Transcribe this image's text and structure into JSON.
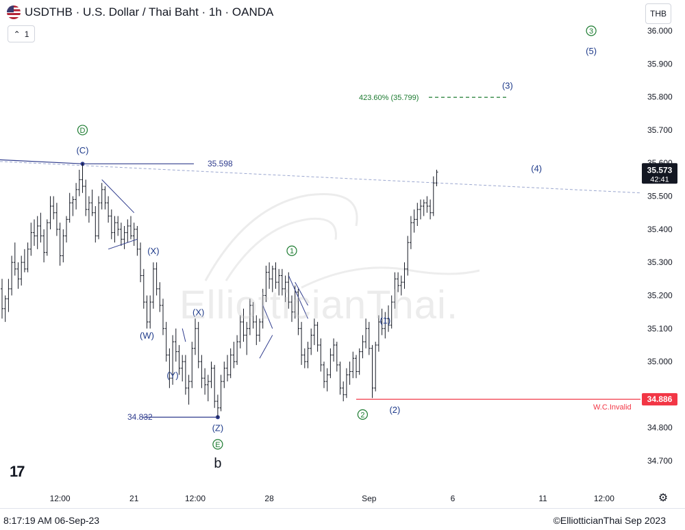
{
  "header": {
    "title": "USDTHB · U.S. Dollar / Thai Baht · 1h · OANDA",
    "interval_count": "1",
    "currency": "THB"
  },
  "watermark": "ElliotticianThai.",
  "footer": {
    "timestamp": "8:17:19 AM 06-Sep-23",
    "copyright": "©ElliotticianThai Sep 2023"
  },
  "tv_logo": "17",
  "chart_data": {
    "type": "candlestick",
    "symbol": "USDTHB",
    "ylim": [
      34.68,
      36.04
    ],
    "y_ticks": [
      {
        "value": 36.0,
        "label": "36.000"
      },
      {
        "value": 35.9,
        "label": "35.900"
      },
      {
        "value": 35.8,
        "label": "35.800"
      },
      {
        "value": 35.7,
        "label": "35.700"
      },
      {
        "value": 35.6,
        "label": "35.600"
      },
      {
        "value": 35.5,
        "label": "35.500"
      },
      {
        "value": 35.4,
        "label": "35.400"
      },
      {
        "value": 35.3,
        "label": "35.300"
      },
      {
        "value": 35.2,
        "label": "35.200"
      },
      {
        "value": 35.1,
        "label": "35.100"
      },
      {
        "value": 35.0,
        "label": "35.000"
      },
      {
        "value": 34.8,
        "label": "34.800"
      },
      {
        "value": 34.7,
        "label": "34.700"
      }
    ],
    "x_ticks": [
      {
        "label": "12:00",
        "bar": 18
      },
      {
        "label": "21",
        "bar": 41
      },
      {
        "label": "12:00",
        "bar": 60
      },
      {
        "label": "28",
        "bar": 83
      },
      {
        "label": "Sep",
        "bar": 114
      },
      {
        "label": "6",
        "bar": 140
      },
      {
        "label": "11",
        "bar": 168
      },
      {
        "label": "12:00",
        "bar": 187
      }
    ],
    "price_badge": {
      "value": 35.573,
      "label": "35.573",
      "countdown": "42:41",
      "color": "#131722"
    },
    "invalid_badge": {
      "value": 34.886,
      "label": "34.886",
      "color": "#f23645"
    },
    "invalid_label": "W.C.Invalid",
    "levels": [
      {
        "value": 35.598,
        "label": "35.598"
      },
      {
        "value": 34.832,
        "label": "34.832"
      }
    ],
    "fib": {
      "value": 35.799,
      "label": "423.60% (35.799)"
    },
    "wave_labels": [
      {
        "text": "D",
        "circled": true,
        "bar": 25,
        "price": 35.7,
        "color": "#1b7a2f"
      },
      {
        "text": "(C)",
        "bar": 25,
        "price": 35.64,
        "color": "#1e3a8a"
      },
      {
        "text": "(X)",
        "bar": 47,
        "price": 35.335,
        "color": "#1e3a8a"
      },
      {
        "text": "(W)",
        "bar": 45,
        "price": 35.08,
        "color": "#1e3a8a"
      },
      {
        "text": "(X)",
        "bar": 61,
        "price": 35.15,
        "color": "#1e3a8a"
      },
      {
        "text": "(Y)",
        "bar": 53,
        "price": 34.96,
        "color": "#1e3a8a"
      },
      {
        "text": "(Z)",
        "bar": 67,
        "price": 34.8,
        "color": "#1e3a8a"
      },
      {
        "text": "E",
        "circled": true,
        "bar": 67,
        "price": 34.75,
        "color": "#1b7a2f"
      },
      {
        "text": "b",
        "bar": 67,
        "price": 34.69,
        "color": "#131722",
        "big": true
      },
      {
        "text": "1",
        "circled": true,
        "bar": 90,
        "price": 35.335,
        "color": "#1b7a2f"
      },
      {
        "text": "(1)",
        "bar": 119,
        "price": 35.125,
        "color": "#1e3a8a"
      },
      {
        "text": "2",
        "circled": true,
        "bar": 112,
        "price": 34.84,
        "color": "#1b7a2f"
      },
      {
        "text": "(2)",
        "bar": 122,
        "price": 34.855,
        "color": "#1e3a8a"
      },
      {
        "text": "(3)",
        "bar": 157,
        "price": 35.835,
        "color": "#1e3a8a"
      },
      {
        "text": "(4)",
        "bar": 166,
        "price": 35.585,
        "color": "#1e3a8a"
      },
      {
        "text": "3",
        "circled": true,
        "bar": 183,
        "price": 36.0,
        "color": "#1b7a2f"
      },
      {
        "text": "(5)",
        "bar": 183,
        "price": 35.94,
        "color": "#1e3a8a"
      }
    ],
    "bars": [
      {
        "o": 35.22,
        "h": 35.25,
        "l": 35.13,
        "c": 35.16
      },
      {
        "o": 35.16,
        "h": 35.2,
        "l": 35.12,
        "c": 35.19
      },
      {
        "o": 35.19,
        "h": 35.25,
        "l": 35.15,
        "c": 35.22
      },
      {
        "o": 35.22,
        "h": 35.32,
        "l": 35.2,
        "c": 35.3
      },
      {
        "o": 35.3,
        "h": 35.36,
        "l": 35.26,
        "c": 35.28
      },
      {
        "o": 35.28,
        "h": 35.3,
        "l": 35.22,
        "c": 35.25
      },
      {
        "o": 35.25,
        "h": 35.32,
        "l": 35.23,
        "c": 35.3
      },
      {
        "o": 35.3,
        "h": 35.34,
        "l": 35.27,
        "c": 35.28
      },
      {
        "o": 35.28,
        "h": 35.36,
        "l": 35.27,
        "c": 35.34
      },
      {
        "o": 35.34,
        "h": 35.42,
        "l": 35.32,
        "c": 35.39
      },
      {
        "o": 35.39,
        "h": 35.43,
        "l": 35.35,
        "c": 35.38
      },
      {
        "o": 35.38,
        "h": 35.44,
        "l": 35.34,
        "c": 35.41
      },
      {
        "o": 35.41,
        "h": 35.45,
        "l": 35.36,
        "c": 35.38
      },
      {
        "o": 35.38,
        "h": 35.4,
        "l": 35.3,
        "c": 35.33
      },
      {
        "o": 35.33,
        "h": 35.43,
        "l": 35.32,
        "c": 35.42
      },
      {
        "o": 35.42,
        "h": 35.5,
        "l": 35.4,
        "c": 35.47
      },
      {
        "o": 35.47,
        "h": 35.5,
        "l": 35.43,
        "c": 35.45
      },
      {
        "o": 35.45,
        "h": 35.48,
        "l": 35.38,
        "c": 35.4
      },
      {
        "o": 35.4,
        "h": 35.42,
        "l": 35.29,
        "c": 35.32
      },
      {
        "o": 35.32,
        "h": 35.4,
        "l": 35.3,
        "c": 35.38
      },
      {
        "o": 35.38,
        "h": 35.44,
        "l": 35.36,
        "c": 35.43
      },
      {
        "o": 35.43,
        "h": 35.51,
        "l": 35.42,
        "c": 35.48
      },
      {
        "o": 35.48,
        "h": 35.5,
        "l": 35.44,
        "c": 35.49
      },
      {
        "o": 35.49,
        "h": 35.54,
        "l": 35.46,
        "c": 35.52
      },
      {
        "o": 35.52,
        "h": 35.58,
        "l": 35.5,
        "c": 35.55
      },
      {
        "o": 35.55,
        "h": 35.6,
        "l": 35.51,
        "c": 35.53
      },
      {
        "o": 35.53,
        "h": 35.55,
        "l": 35.44,
        "c": 35.46
      },
      {
        "o": 35.46,
        "h": 35.5,
        "l": 35.42,
        "c": 35.48
      },
      {
        "o": 35.48,
        "h": 35.52,
        "l": 35.44,
        "c": 35.45
      },
      {
        "o": 35.45,
        "h": 35.47,
        "l": 35.36,
        "c": 35.38
      },
      {
        "o": 35.38,
        "h": 35.5,
        "l": 35.37,
        "c": 35.48
      },
      {
        "o": 35.48,
        "h": 35.54,
        "l": 35.46,
        "c": 35.52
      },
      {
        "o": 35.52,
        "h": 35.53,
        "l": 35.46,
        "c": 35.48
      },
      {
        "o": 35.48,
        "h": 35.5,
        "l": 35.42,
        "c": 35.44
      },
      {
        "o": 35.44,
        "h": 35.46,
        "l": 35.37,
        "c": 35.39
      },
      {
        "o": 35.39,
        "h": 35.44,
        "l": 35.36,
        "c": 35.42
      },
      {
        "o": 35.42,
        "h": 35.44,
        "l": 35.38,
        "c": 35.4
      },
      {
        "o": 35.4,
        "h": 35.42,
        "l": 35.35,
        "c": 35.37
      },
      {
        "o": 35.37,
        "h": 35.41,
        "l": 35.34,
        "c": 35.39
      },
      {
        "o": 35.39,
        "h": 35.43,
        "l": 35.36,
        "c": 35.41
      },
      {
        "o": 35.41,
        "h": 35.44,
        "l": 35.37,
        "c": 35.38
      },
      {
        "o": 35.38,
        "h": 35.42,
        "l": 35.35,
        "c": 35.4
      },
      {
        "o": 35.4,
        "h": 35.41,
        "l": 35.32,
        "c": 35.34
      },
      {
        "o": 35.34,
        "h": 35.36,
        "l": 35.24,
        "c": 35.26
      },
      {
        "o": 35.26,
        "h": 35.28,
        "l": 35.16,
        "c": 35.18
      },
      {
        "o": 35.18,
        "h": 35.2,
        "l": 35.1,
        "c": 35.12
      },
      {
        "o": 35.12,
        "h": 35.2,
        "l": 35.1,
        "c": 35.18
      },
      {
        "o": 35.18,
        "h": 35.3,
        "l": 35.16,
        "c": 35.28
      },
      {
        "o": 35.28,
        "h": 35.3,
        "l": 35.2,
        "c": 35.22
      },
      {
        "o": 35.22,
        "h": 35.24,
        "l": 35.15,
        "c": 35.17
      },
      {
        "o": 35.17,
        "h": 35.19,
        "l": 35.08,
        "c": 35.1
      },
      {
        "o": 35.1,
        "h": 35.12,
        "l": 35.0,
        "c": 35.02
      },
      {
        "o": 35.02,
        "h": 35.04,
        "l": 34.92,
        "c": 34.95
      },
      {
        "o": 34.95,
        "h": 35.08,
        "l": 34.93,
        "c": 35.06
      },
      {
        "o": 35.06,
        "h": 35.1,
        "l": 35.0,
        "c": 35.03
      },
      {
        "o": 35.03,
        "h": 35.05,
        "l": 34.96,
        "c": 34.98
      },
      {
        "o": 34.98,
        "h": 35.02,
        "l": 34.94,
        "c": 35.0
      },
      {
        "o": 35.0,
        "h": 35.02,
        "l": 34.9,
        "c": 34.92
      },
      {
        "o": 34.92,
        "h": 34.96,
        "l": 34.87,
        "c": 34.94
      },
      {
        "o": 34.94,
        "h": 35.06,
        "l": 34.92,
        "c": 35.04
      },
      {
        "o": 35.04,
        "h": 35.13,
        "l": 35.02,
        "c": 35.1
      },
      {
        "o": 35.1,
        "h": 35.12,
        "l": 34.98,
        "c": 35.0
      },
      {
        "o": 35.0,
        "h": 35.02,
        "l": 34.92,
        "c": 34.95
      },
      {
        "o": 34.95,
        "h": 34.98,
        "l": 34.9,
        "c": 34.93
      },
      {
        "o": 34.93,
        "h": 34.96,
        "l": 34.88,
        "c": 34.94
      },
      {
        "o": 34.94,
        "h": 35.0,
        "l": 34.92,
        "c": 34.98
      },
      {
        "o": 34.98,
        "h": 34.99,
        "l": 34.86,
        "c": 34.88
      },
      {
        "o": 34.88,
        "h": 34.9,
        "l": 34.83,
        "c": 34.86
      },
      {
        "o": 34.86,
        "h": 34.96,
        "l": 34.85,
        "c": 34.94
      },
      {
        "o": 34.94,
        "h": 35.0,
        "l": 34.92,
        "c": 34.98
      },
      {
        "o": 34.98,
        "h": 35.02,
        "l": 34.94,
        "c": 34.96
      },
      {
        "o": 34.96,
        "h": 35.04,
        "l": 34.95,
        "c": 35.02
      },
      {
        "o": 35.02,
        "h": 35.06,
        "l": 34.98,
        "c": 35.0
      },
      {
        "o": 35.0,
        "h": 35.08,
        "l": 34.99,
        "c": 35.06
      },
      {
        "o": 35.06,
        "h": 35.14,
        "l": 35.04,
        "c": 35.12
      },
      {
        "o": 35.12,
        "h": 35.16,
        "l": 35.06,
        "c": 35.08
      },
      {
        "o": 35.08,
        "h": 35.12,
        "l": 35.02,
        "c": 35.1
      },
      {
        "o": 35.1,
        "h": 35.19,
        "l": 35.08,
        "c": 35.17
      },
      {
        "o": 35.17,
        "h": 35.18,
        "l": 35.1,
        "c": 35.12
      },
      {
        "o": 35.12,
        "h": 35.14,
        "l": 35.05,
        "c": 35.08
      },
      {
        "o": 35.08,
        "h": 35.13,
        "l": 35.06,
        "c": 35.12
      },
      {
        "o": 35.12,
        "h": 35.22,
        "l": 35.1,
        "c": 35.2
      },
      {
        "o": 35.2,
        "h": 35.29,
        "l": 35.18,
        "c": 35.27
      },
      {
        "o": 35.27,
        "h": 35.3,
        "l": 35.22,
        "c": 35.25
      },
      {
        "o": 35.25,
        "h": 35.29,
        "l": 35.21,
        "c": 35.28
      },
      {
        "o": 35.28,
        "h": 35.3,
        "l": 35.22,
        "c": 35.24
      },
      {
        "o": 35.24,
        "h": 35.28,
        "l": 35.2,
        "c": 35.26
      },
      {
        "o": 35.26,
        "h": 35.28,
        "l": 35.2,
        "c": 35.22
      },
      {
        "o": 35.22,
        "h": 35.26,
        "l": 35.18,
        "c": 35.24
      },
      {
        "o": 35.24,
        "h": 35.27,
        "l": 35.16,
        "c": 35.18
      },
      {
        "o": 35.18,
        "h": 35.2,
        "l": 35.12,
        "c": 35.15
      },
      {
        "o": 35.15,
        "h": 35.23,
        "l": 35.13,
        "c": 35.21
      },
      {
        "o": 35.21,
        "h": 35.22,
        "l": 35.08,
        "c": 35.1
      },
      {
        "o": 35.1,
        "h": 35.12,
        "l": 34.99,
        "c": 35.02
      },
      {
        "o": 35.02,
        "h": 35.04,
        "l": 34.98,
        "c": 35.0
      },
      {
        "o": 35.0,
        "h": 35.06,
        "l": 34.98,
        "c": 35.04
      },
      {
        "o": 35.04,
        "h": 35.1,
        "l": 35.02,
        "c": 35.08
      },
      {
        "o": 35.08,
        "h": 35.13,
        "l": 35.05,
        "c": 35.11
      },
      {
        "o": 35.11,
        "h": 35.12,
        "l": 35.03,
        "c": 35.05
      },
      {
        "o": 35.05,
        "h": 35.07,
        "l": 34.97,
        "c": 34.99
      },
      {
        "o": 34.99,
        "h": 35.0,
        "l": 34.92,
        "c": 34.94
      },
      {
        "o": 34.94,
        "h": 34.98,
        "l": 34.91,
        "c": 34.96
      },
      {
        "o": 34.96,
        "h": 35.04,
        "l": 34.95,
        "c": 35.02
      },
      {
        "o": 35.02,
        "h": 35.07,
        "l": 35.0,
        "c": 35.05
      },
      {
        "o": 35.05,
        "h": 35.06,
        "l": 34.97,
        "c": 34.99
      },
      {
        "o": 34.99,
        "h": 35.0,
        "l": 34.9,
        "c": 34.92
      },
      {
        "o": 34.92,
        "h": 34.94,
        "l": 34.88,
        "c": 34.9
      },
      {
        "o": 34.9,
        "h": 34.98,
        "l": 34.89,
        "c": 34.96
      },
      {
        "o": 34.96,
        "h": 35.0,
        "l": 34.93,
        "c": 34.97
      },
      {
        "o": 34.97,
        "h": 35.03,
        "l": 34.95,
        "c": 35.01
      },
      {
        "o": 35.01,
        "h": 35.02,
        "l": 34.95,
        "c": 34.97
      },
      {
        "o": 34.97,
        "h": 35.04,
        "l": 34.96,
        "c": 35.03
      },
      {
        "o": 35.03,
        "h": 35.08,
        "l": 35.01,
        "c": 35.06
      },
      {
        "o": 35.06,
        "h": 35.13,
        "l": 35.04,
        "c": 35.1
      },
      {
        "o": 35.1,
        "h": 35.12,
        "l": 35.02,
        "c": 35.04
      },
      {
        "o": 35.04,
        "h": 35.05,
        "l": 34.89,
        "c": 34.92
      },
      {
        "o": 34.92,
        "h": 35.06,
        "l": 34.91,
        "c": 35.05
      },
      {
        "o": 35.05,
        "h": 35.14,
        "l": 35.03,
        "c": 35.12
      },
      {
        "o": 35.12,
        "h": 35.16,
        "l": 35.08,
        "c": 35.1
      },
      {
        "o": 35.1,
        "h": 35.15,
        "l": 35.07,
        "c": 35.13
      },
      {
        "o": 35.13,
        "h": 35.17,
        "l": 35.09,
        "c": 35.11
      },
      {
        "o": 35.11,
        "h": 35.2,
        "l": 35.1,
        "c": 35.18
      },
      {
        "o": 35.18,
        "h": 35.27,
        "l": 35.16,
        "c": 35.25
      },
      {
        "o": 35.25,
        "h": 35.27,
        "l": 35.21,
        "c": 35.23
      },
      {
        "o": 35.23,
        "h": 35.26,
        "l": 35.2,
        "c": 35.24
      },
      {
        "o": 35.24,
        "h": 35.3,
        "l": 35.22,
        "c": 35.28
      },
      {
        "o": 35.28,
        "h": 35.38,
        "l": 35.26,
        "c": 35.36
      },
      {
        "o": 35.36,
        "h": 35.44,
        "l": 35.34,
        "c": 35.42
      },
      {
        "o": 35.42,
        "h": 35.46,
        "l": 35.39,
        "c": 35.43
      },
      {
        "o": 35.43,
        "h": 35.48,
        "l": 35.41,
        "c": 35.46
      },
      {
        "o": 35.46,
        "h": 35.49,
        "l": 35.43,
        "c": 35.47
      },
      {
        "o": 35.47,
        "h": 35.49,
        "l": 35.44,
        "c": 35.48
      },
      {
        "o": 35.48,
        "h": 35.5,
        "l": 35.45,
        "c": 35.47
      },
      {
        "o": 35.47,
        "h": 35.49,
        "l": 35.43,
        "c": 35.45
      },
      {
        "o": 35.45,
        "h": 35.56,
        "l": 35.44,
        "c": 35.54
      },
      {
        "o": 35.54,
        "h": 35.58,
        "l": 35.53,
        "c": 35.573
      }
    ]
  }
}
